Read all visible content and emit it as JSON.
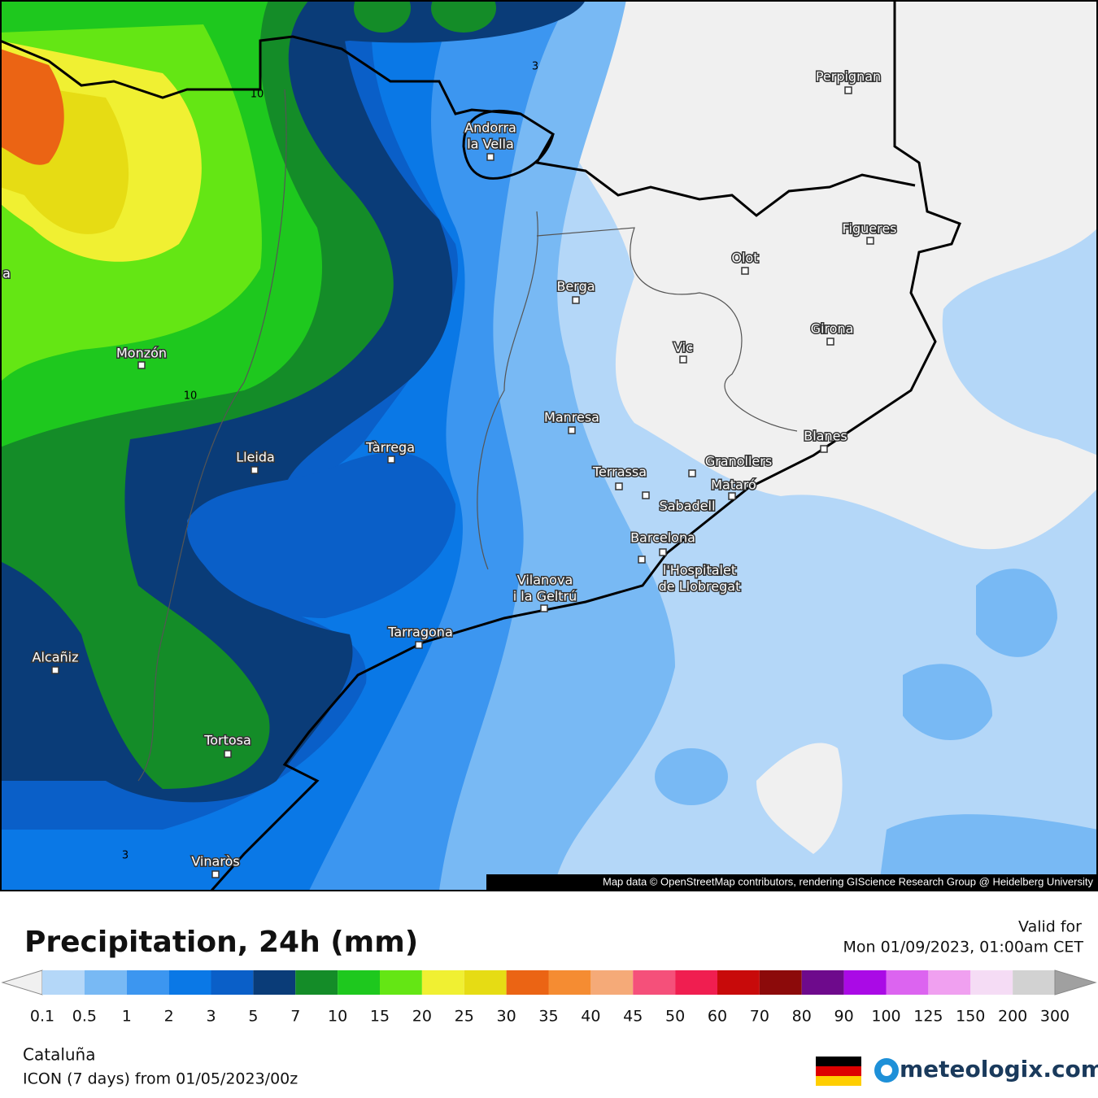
{
  "map": {
    "cities": [
      "Perpignan",
      [
        "Andorra",
        "la Vella"
      ],
      "Figueres",
      "Olot",
      "Berga",
      "Vic",
      "Girona",
      "Monzón",
      "Manresa",
      "Blanes",
      "Tàrrega",
      "Lleida",
      "Granollers",
      "Terrassa",
      "Mataró",
      "Sabadell",
      "Barcelona",
      [
        "l'Hospitalet",
        "de Llobregat"
      ],
      [
        "Vilanova",
        "i la Geltrú"
      ],
      "Tarragona",
      "Alcañiz",
      "Tortosa",
      "Vinaròs",
      "a"
    ],
    "contour_labels": [
      "3",
      "10",
      "10",
      "3"
    ],
    "attribution": "Map data © OpenStreetMap contributors, rendering GIScience Research Group @ Heidelberg University"
  },
  "footer": {
    "title": "Precipitation, 24h (mm)",
    "valid_label": "Valid for",
    "valid_time": "Mon 01/09/2023, 01:00am CET",
    "region": "Cataluña",
    "model": "ICON (7 days) from 01/05/2023/00z",
    "logo": "meteologix.com"
  },
  "legend": {
    "under_color": "#f0f0f0",
    "over_color": "#a0a0a0",
    "colors": [
      "#b4d7f8",
      "#78b9f4",
      "#3c96f0",
      "#0a78e6",
      "#0a5fc8",
      "#0a3c78",
      "#148c28",
      "#1ec81e",
      "#64e614",
      "#f0f032",
      "#e6dc14",
      "#eb6414",
      "#f58c32",
      "#f5aa78",
      "#f5507a",
      "#f01e50",
      "#c80a0a",
      "#8c0a0a",
      "#6e0a8c",
      "#aa0ae6",
      "#dc64f0",
      "#f0a0f0",
      "#f5dcf5",
      "#d2d2d2"
    ],
    "ticks": [
      "0.1",
      "0.5",
      "1",
      "2",
      "3",
      "5",
      "7",
      "10",
      "15",
      "20",
      "25",
      "30",
      "35",
      "40",
      "45",
      "50",
      "60",
      "70",
      "80",
      "90",
      "100",
      "125",
      "150",
      "200",
      "300"
    ]
  }
}
